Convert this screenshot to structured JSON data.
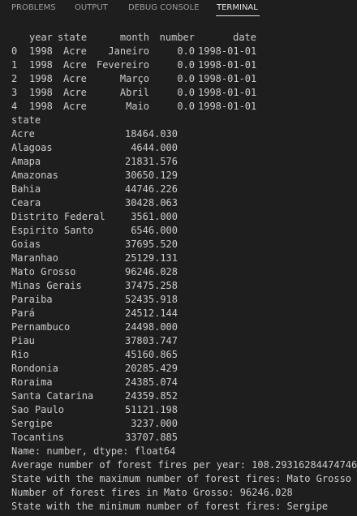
{
  "panel_tabs": [
    {
      "label": "PROBLEMS",
      "active": false
    },
    {
      "label": "OUTPUT",
      "active": false
    },
    {
      "label": "DEBUG CONSOLE",
      "active": false
    },
    {
      "label": "TERMINAL",
      "active": true
    }
  ],
  "terminal": {
    "df_head": {
      "columns": [
        "year",
        "state",
        "month",
        "number",
        "date"
      ],
      "rows": [
        {
          "index": "0",
          "year": "1998",
          "state": "Acre",
          "month": "Janeiro",
          "number": "0.0",
          "date": "1998-01-01"
        },
        {
          "index": "1",
          "year": "1998",
          "state": "Acre",
          "month": "Fevereiro",
          "number": "0.0",
          "date": "1998-01-01"
        },
        {
          "index": "2",
          "year": "1998",
          "state": "Acre",
          "month": "Março",
          "number": "0.0",
          "date": "1998-01-01"
        },
        {
          "index": "3",
          "year": "1998",
          "state": "Acre",
          "month": "Abril",
          "number": "0.0",
          "date": "1998-01-01"
        },
        {
          "index": "4",
          "year": "1998",
          "state": "Acre",
          "month": "Maio",
          "number": "0.0",
          "date": "1998-01-01"
        }
      ]
    },
    "series_index_name": "state",
    "series": [
      {
        "state": "Acre",
        "value": "18464.030"
      },
      {
        "state": "Alagoas",
        "value": "4644.000"
      },
      {
        "state": "Amapa",
        "value": "21831.576"
      },
      {
        "state": "Amazonas",
        "value": "30650.129"
      },
      {
        "state": "Bahia",
        "value": "44746.226"
      },
      {
        "state": "Ceara",
        "value": "30428.063"
      },
      {
        "state": "Distrito Federal",
        "value": "3561.000"
      },
      {
        "state": "Espirito Santo",
        "value": "6546.000"
      },
      {
        "state": "Goias",
        "value": "37695.520"
      },
      {
        "state": "Maranhao",
        "value": "25129.131"
      },
      {
        "state": "Mato Grosso",
        "value": "96246.028"
      },
      {
        "state": "Minas Gerais",
        "value": "37475.258"
      },
      {
        "state": "Paraiba",
        "value": "52435.918"
      },
      {
        "state": "Pará",
        "value": "24512.144"
      },
      {
        "state": "Pernambuco",
        "value": "24498.000"
      },
      {
        "state": "Piau",
        "value": "37803.747"
      },
      {
        "state": "Rio",
        "value": "45160.865"
      },
      {
        "state": "Rondonia",
        "value": "20285.429"
      },
      {
        "state": "Roraima",
        "value": "24385.074"
      },
      {
        "state": "Santa Catarina",
        "value": "24359.852"
      },
      {
        "state": "Sao Paulo",
        "value": "51121.198"
      },
      {
        "state": "Sergipe",
        "value": "3237.000"
      },
      {
        "state": "Tocantins",
        "value": "33707.885"
      }
    ],
    "series_footer": "Name: number, dtype: float64",
    "summary": [
      "Average number of forest fires per year: 108.29316284474746",
      "State with the maximum number of forest fires: Mato Grosso",
      "Number of forest fires in Mato Grosso: 96246.028",
      "State with the minimum number of forest fires: Sergipe"
    ]
  }
}
